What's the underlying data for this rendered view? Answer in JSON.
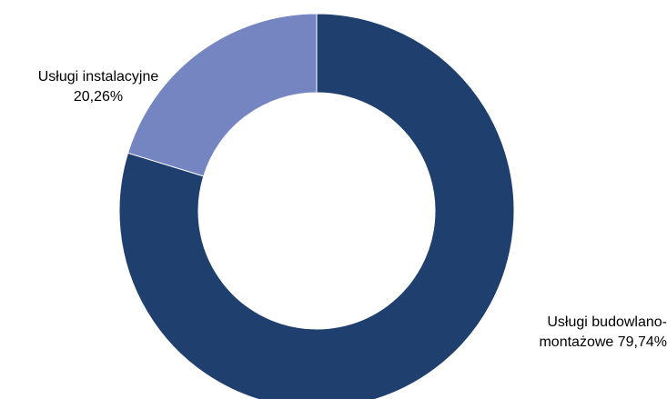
{
  "chart_data": {
    "type": "pie",
    "donut": true,
    "start_angle_deg": 0,
    "direction": "clockwise",
    "slices": [
      {
        "name": "Usługi budowlano-montażowe",
        "value": 79.74,
        "label": "Usługi budowlano-montażowe 79,74%",
        "label_lines": [
          "Usługi budowlano-",
          "montażowe 79,74%"
        ],
        "color": "#1F3F6E"
      },
      {
        "name": "Usługi instalacyjne",
        "value": 20.26,
        "label": "Usługi instalacyjne 20,26%",
        "label_lines": [
          "Usługi instalacyjne",
          "20,26%"
        ],
        "color": "#7585C2"
      }
    ],
    "legend": "none",
    "title": ""
  }
}
